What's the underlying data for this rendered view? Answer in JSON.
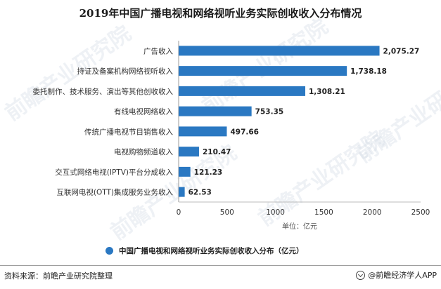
{
  "title": "2019年中国广播电视和网络视听业务实际创收收入分布情况",
  "chart_data": {
    "type": "bar",
    "orientation": "horizontal",
    "categories": [
      "广告收入",
      "持证及备案机构网络视听收入",
      "委托制作、技术服务、演出等其他创收收入",
      "有线电视网络收入",
      "传统广播电视节目销售收入",
      "电视购物频道收入",
      "交互式网络电视(IPTV)平台分成收入",
      "互联网电视(OTT)集成服务业务收入"
    ],
    "values": [
      2075.27,
      1738.18,
      1308.21,
      753.35,
      497.66,
      210.47,
      121.23,
      62.53
    ],
    "value_labels": [
      "2,075.27",
      "1,738.18",
      "1,308.21",
      "753.35",
      "497.66",
      "210.47",
      "121.23",
      "62.53"
    ],
    "series": [
      {
        "name": "中国广播电视和网络视听业务实际创收收入分布（亿元）",
        "values": [
          2075.27,
          1738.18,
          1308.21,
          753.35,
          497.66,
          210.47,
          121.23,
          62.53
        ]
      }
    ],
    "xlim": [
      0,
      2500
    ],
    "xticks": [
      "0",
      "500",
      "1000",
      "1500",
      "2000",
      "2500"
    ],
    "xlabel": "单位：亿元",
    "grid": false,
    "legend_position": "bottom",
    "bar_color": "#2a78c2"
  },
  "legend_label": "中国广播电视和网络视听业务实际创收收入分布（亿元）",
  "footer": {
    "source": "资料来源：前瞻产业研究院整理",
    "brand": "@前瞻经济学人APP"
  },
  "watermark": "前瞻产业研究院"
}
